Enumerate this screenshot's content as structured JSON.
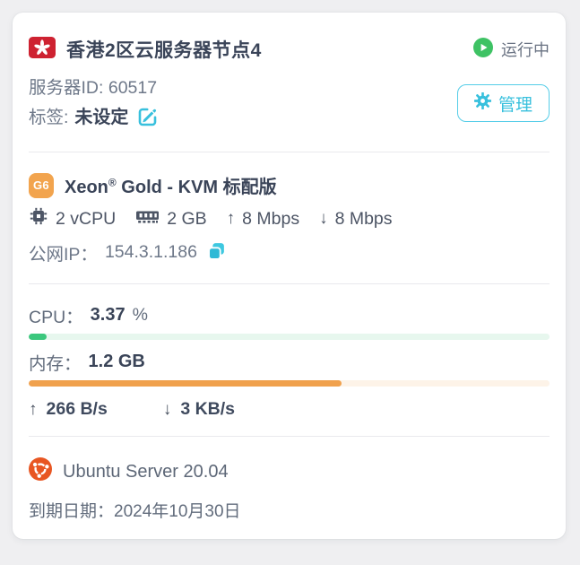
{
  "header": {
    "title": "香港2区云服务器节点4",
    "status_label": "运行中",
    "server_id_label": "服务器ID:",
    "server_id_value": "60517",
    "tag_label": "标签:",
    "tag_value": "未设定",
    "manage_label": "管理"
  },
  "plan": {
    "badge_label": "G6",
    "name_base": "Xeon",
    "name_reg": "®",
    "name_rest": " Gold - KVM 标配版",
    "cpu": "2 vCPU",
    "ram": "2 GB",
    "up_arrow": "↑",
    "up_value": "8 Mbps",
    "down_arrow": "↓",
    "down_value": "8 Mbps",
    "ip_label": "公网IP：",
    "ip_value": "154.3.1.186"
  },
  "usage": {
    "cpu_label": "CPU：",
    "cpu_value": "3.37",
    "cpu_unit": "%",
    "cpu_percent": 3.37,
    "mem_label": "内存：",
    "mem_value": "1.2 GB",
    "mem_percent": 60,
    "net_up_arrow": "↑",
    "net_up_value": "266 B/s",
    "net_down_arrow": "↓",
    "net_down_value": "3 KB/s"
  },
  "footer": {
    "os_name": "Ubuntu Server 20.04",
    "expiry_label": "到期日期：",
    "expiry_value": "2024年10月30日"
  },
  "colors": {
    "accent_teal": "#38c0dd",
    "status_green": "#3ec264",
    "badge_orange": "#f2a44e",
    "ubuntu_orange": "#e85622",
    "cpu_bar_green": "#3bc77d",
    "mem_bar_orange": "#f0a14d",
    "flag_red": "#ce2231"
  }
}
